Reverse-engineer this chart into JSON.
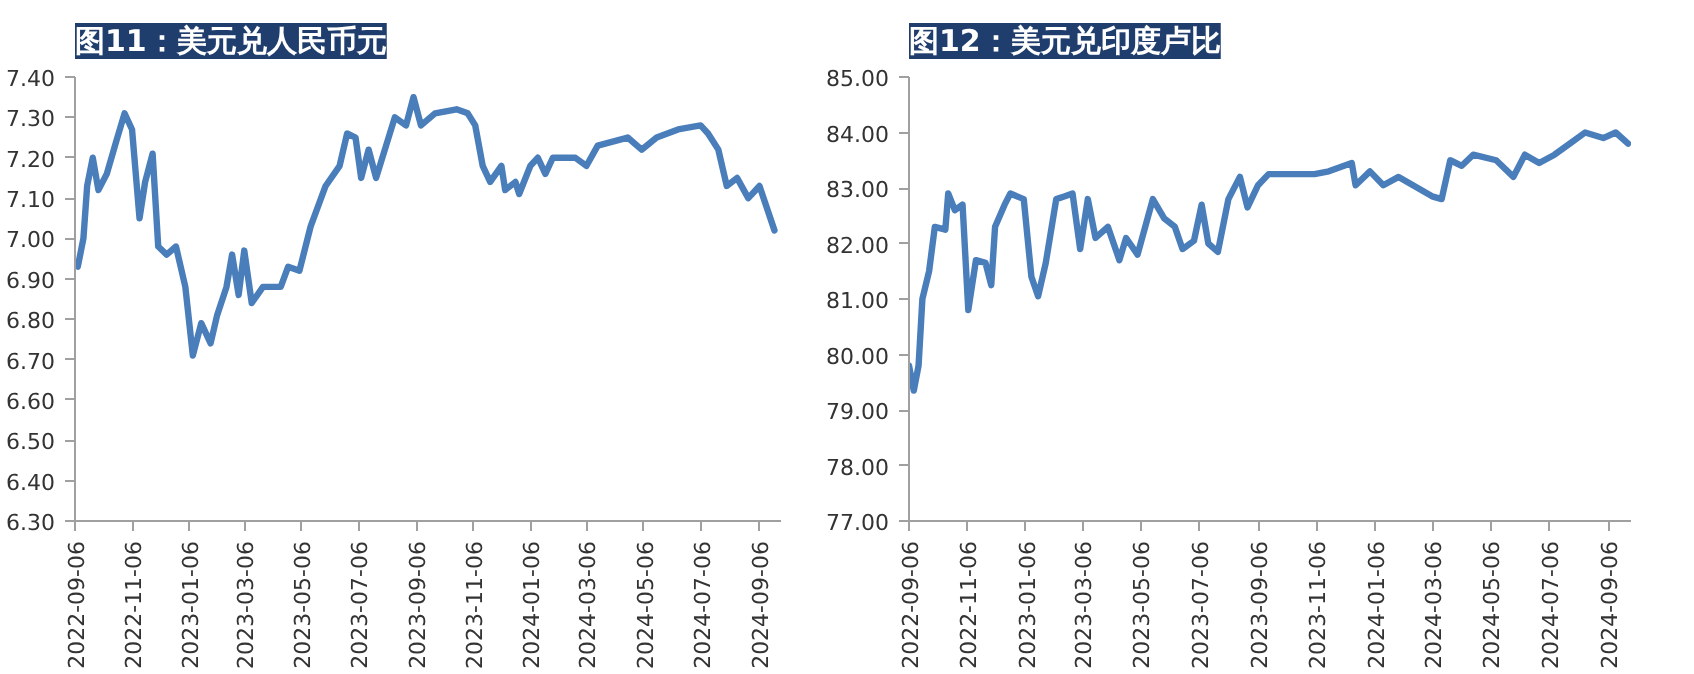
{
  "chart_data": [
    {
      "type": "line",
      "title": "图11：美元兑人民币元",
      "xlim": [
        "2022-09-06",
        "2024-09-30"
      ],
      "xticks": [
        "2022-09-06",
        "2022-11-06",
        "2023-01-06",
        "2023-03-06",
        "2023-05-06",
        "2023-07-06",
        "2023-09-06",
        "2023-11-06",
        "2024-01-06",
        "2024-03-06",
        "2024-05-06",
        "2024-07-06",
        "2024-09-06"
      ],
      "ylim": [
        6.3,
        7.4
      ],
      "yticks": [
        {
          "value": 6.3,
          "label": "6.30"
        },
        {
          "value": 6.4,
          "label": "6.40"
        },
        {
          "value": 6.5,
          "label": "6.50"
        },
        {
          "value": 6.6,
          "label": "6.60"
        },
        {
          "value": 6.7,
          "label": "6.70"
        },
        {
          "value": 6.8,
          "label": "6.80"
        },
        {
          "value": 6.9,
          "label": "6.90"
        },
        {
          "value": 7.0,
          "label": "7.00"
        },
        {
          "value": 7.1,
          "label": "7.10"
        },
        {
          "value": 7.2,
          "label": "7.20"
        },
        {
          "value": 7.3,
          "label": "7.30"
        },
        {
          "value": 7.4,
          "label": "7.40"
        }
      ],
      "grid": false,
      "series": [
        {
          "color": "#4a7ebb",
          "x": [
            "2022-09-09",
            "2022-09-15",
            "2022-09-19",
            "2022-09-25",
            "2022-10-01",
            "2022-10-10",
            "2022-10-20",
            "2022-10-29",
            "2022-11-06",
            "2022-11-14",
            "2022-11-20",
            "2022-11-28",
            "2022-12-04",
            "2022-12-13",
            "2022-12-23",
            "2023-01-02",
            "2023-01-10",
            "2023-01-19",
            "2023-01-29",
            "2023-02-05",
            "2023-02-15",
            "2023-02-21",
            "2023-02-28",
            "2023-03-06",
            "2023-03-14",
            "2023-03-26",
            "2023-04-14",
            "2023-04-22",
            "2023-05-04",
            "2023-05-16",
            "2023-06-01",
            "2023-06-16",
            "2023-06-24",
            "2023-07-03",
            "2023-07-09",
            "2023-07-17",
            "2023-07-25",
            "2023-08-06",
            "2023-08-14",
            "2023-08-26",
            "2023-09-03",
            "2023-09-11",
            "2023-09-26",
            "2023-10-19",
            "2023-10-31",
            "2023-11-08",
            "2023-11-16",
            "2023-11-24",
            "2023-12-06",
            "2023-12-10",
            "2023-12-21",
            "2023-12-25",
            "2024-01-06",
            "2024-01-14",
            "2024-01-22",
            "2024-01-30",
            "2024-02-23",
            "2024-03-06",
            "2024-03-18",
            "2024-04-19",
            "2024-05-04",
            "2024-05-20",
            "2024-06-12",
            "2024-07-06",
            "2024-07-14",
            "2024-07-25",
            "2024-08-03",
            "2024-08-14",
            "2024-08-26",
            "2024-09-07",
            "2024-09-23"
          ],
          "values": [
            6.93,
            7.0,
            7.13,
            7.2,
            7.12,
            7.16,
            7.24,
            7.31,
            7.27,
            7.05,
            7.14,
            7.21,
            6.98,
            6.96,
            6.98,
            6.88,
            6.71,
            6.79,
            6.74,
            6.81,
            6.88,
            6.96,
            6.86,
            6.97,
            6.84,
            6.88,
            6.88,
            6.93,
            6.92,
            7.03,
            7.13,
            7.18,
            7.26,
            7.25,
            7.15,
            7.22,
            7.15,
            7.24,
            7.3,
            7.28,
            7.35,
            7.28,
            7.31,
            7.32,
            7.31,
            7.28,
            7.18,
            7.14,
            7.18,
            7.12,
            7.14,
            7.11,
            7.18,
            7.2,
            7.16,
            7.2,
            7.2,
            7.18,
            7.23,
            7.25,
            7.22,
            7.25,
            7.27,
            7.28,
            7.26,
            7.22,
            7.13,
            7.15,
            7.1,
            7.13,
            7.02
          ]
        }
      ]
    },
    {
      "type": "line",
      "title": "图12：美元兑印度卢比",
      "xlim": [
        "2022-09-06",
        "2024-09-30"
      ],
      "xticks": [
        "2022-09-06",
        "2022-11-06",
        "2023-01-06",
        "2023-03-06",
        "2023-05-06",
        "2023-07-06",
        "2023-09-06",
        "2023-11-06",
        "2024-01-06",
        "2024-03-06",
        "2024-05-06",
        "2024-07-06",
        "2024-09-06"
      ],
      "ylim": [
        77,
        85
      ],
      "yticks": [
        {
          "value": 77,
          "label": "77.00"
        },
        {
          "value": 78,
          "label": "78.00"
        },
        {
          "value": 79,
          "label": "79.00"
        },
        {
          "value": 80,
          "label": "80.00"
        },
        {
          "value": 81,
          "label": "81.00"
        },
        {
          "value": 82,
          "label": "82.00"
        },
        {
          "value": 83,
          "label": "83.00"
        },
        {
          "value": 84,
          "label": "84.00"
        },
        {
          "value": 85,
          "label": "85.00"
        }
      ],
      "grid": false,
      "series": [
        {
          "color": "#4a7ebb",
          "x": [
            "2022-09-06",
            "2022-09-11",
            "2022-09-16",
            "2022-09-20",
            "2022-09-27",
            "2022-10-03",
            "2022-10-14",
            "2022-10-17",
            "2022-10-24",
            "2022-11-01",
            "2022-11-07",
            "2022-11-15",
            "2022-11-25",
            "2022-12-01",
            "2022-12-05",
            "2022-12-15",
            "2022-12-21",
            "2023-01-04",
            "2023-01-12",
            "2023-01-19",
            "2023-01-27",
            "2023-02-07",
            "2023-02-16",
            "2023-02-24",
            "2023-03-04",
            "2023-03-12",
            "2023-03-20",
            "2023-04-02",
            "2023-04-14",
            "2023-04-21",
            "2023-05-03",
            "2023-05-19",
            "2023-05-31",
            "2023-06-11",
            "2023-06-19",
            "2023-07-01",
            "2023-07-09",
            "2023-07-16",
            "2023-07-26",
            "2023-08-06",
            "2023-08-18",
            "2023-08-26",
            "2023-09-06",
            "2023-09-17",
            "2023-10-11",
            "2023-11-04",
            "2023-11-19",
            "2023-12-13",
            "2023-12-17",
            "2024-01-01",
            "2024-01-15",
            "2024-01-31",
            "2024-02-15",
            "2024-03-06",
            "2024-03-16",
            "2024-03-25",
            "2024-04-06",
            "2024-04-18",
            "2024-05-12",
            "2024-05-30",
            "2024-06-11",
            "2024-06-26",
            "2024-07-12",
            "2024-07-28",
            "2024-08-13",
            "2024-09-01",
            "2024-09-14",
            "2024-09-27"
          ],
          "values": [
            79.8,
            79.35,
            79.8,
            81.0,
            81.5,
            82.3,
            82.25,
            82.9,
            82.6,
            82.7,
            80.8,
            81.7,
            81.65,
            81.25,
            82.3,
            82.7,
            82.9,
            82.8,
            81.4,
            81.05,
            81.65,
            82.8,
            82.85,
            82.9,
            81.9,
            82.8,
            82.1,
            82.3,
            81.7,
            82.1,
            81.8,
            82.8,
            82.45,
            82.3,
            81.9,
            82.05,
            82.7,
            82.0,
            81.85,
            82.8,
            83.2,
            82.65,
            83.05,
            83.25,
            83.25,
            83.25,
            83.3,
            83.45,
            83.05,
            83.3,
            83.05,
            83.2,
            83.05,
            82.85,
            82.8,
            83.5,
            83.4,
            83.6,
            83.5,
            83.2,
            83.6,
            83.45,
            83.6,
            83.8,
            84.0,
            83.9,
            84.0,
            83.8
          ]
        }
      ]
    }
  ]
}
